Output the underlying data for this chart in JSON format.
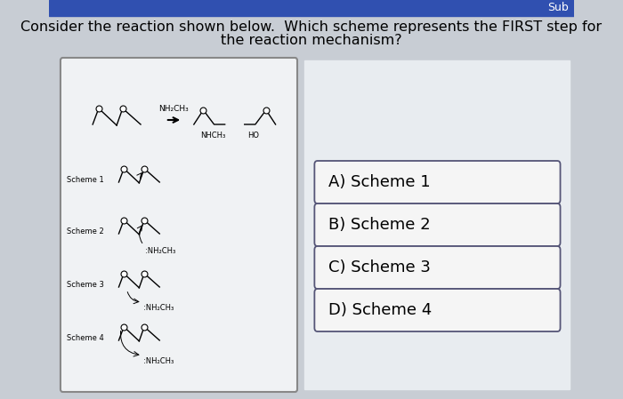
{
  "bg_color": "#c8cdd4",
  "top_bar_color": "#3050b0",
  "sub_label": "Sub",
  "title_line1": "Consider the reaction shown below.  Which scheme represents the FIRST step for",
  "title_line2": "the reaction mechanism?",
  "title_fontsize": 11.5,
  "left_panel_color": "#f0f2f4",
  "left_panel_border": "#888888",
  "right_panel_color": "#e8ecf0",
  "options": [
    "A) Scheme 1",
    "B) Scheme 2",
    "C) Scheme 3",
    "D) Scheme 4"
  ],
  "option_box_color": "#f5f5f5",
  "option_border_color": "#555577",
  "option_text_color": "#000000",
  "option_fontsize": 13,
  "scheme_labels": [
    "Scheme 1",
    "Scheme 2",
    "Scheme 3",
    "Scheme 4"
  ],
  "scheme_label_fontsize": 6,
  "nh2ch3": "NH₂CH₃",
  "nhch3": "NHCH₃",
  "ho": "HO",
  "nh2ch3_nucl": ":NH₂CH₃"
}
